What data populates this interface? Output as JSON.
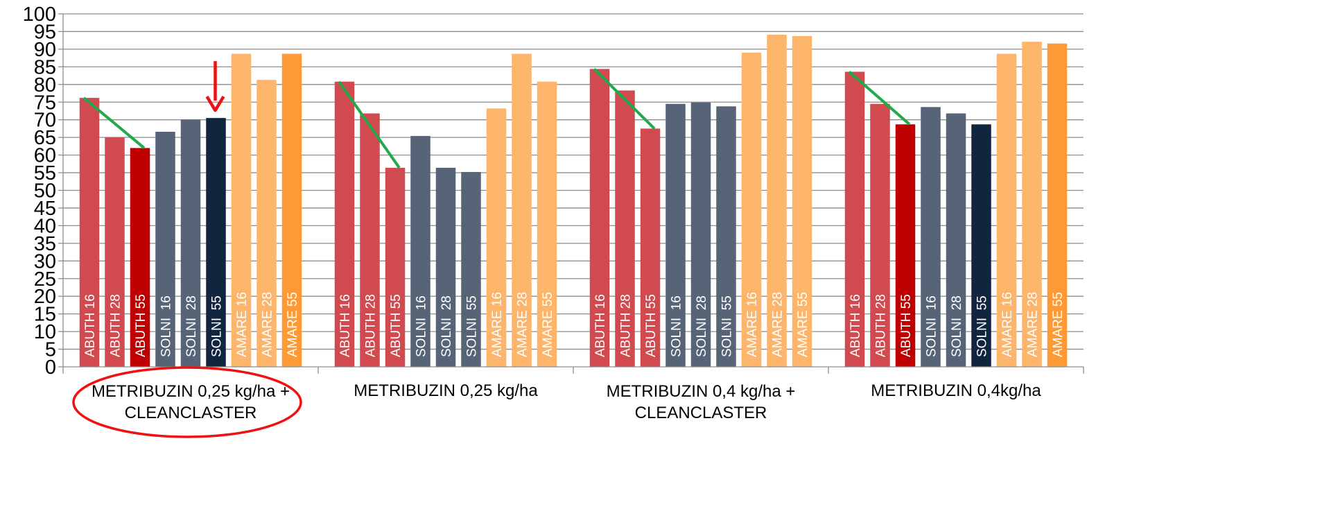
{
  "chart_data": {
    "type": "bar",
    "title": "",
    "xlabel": "",
    "ylabel": "",
    "ylim": [
      0,
      100
    ],
    "yticks": [
      0,
      5,
      10,
      15,
      20,
      25,
      30,
      35,
      40,
      45,
      50,
      55,
      60,
      65,
      70,
      75,
      80,
      85,
      90,
      95,
      100
    ],
    "grid": true,
    "legend": "none",
    "colors": {
      "abuth": "#D04A4F",
      "abuth_highlight": "#C00000",
      "solni": "#576477",
      "solni_highlight": "#12253F",
      "amare": "#FDB56C",
      "amare_highlight": "#FD9A35",
      "trend": "#22AA4A",
      "arrow": "#EE1111",
      "circle": "#EE1111"
    },
    "groups": [
      {
        "label_lines": [
          "METRIBUZIN 0,25 kg/ha +",
          "CLEANCLASTER"
        ],
        "circled": true,
        "bars": [
          {
            "label": "ABUTH 16",
            "value": 76.2,
            "color": "abuth"
          },
          {
            "label": "ABUTH 28",
            "value": 65.0,
            "color": "abuth"
          },
          {
            "label": "ABUTH 55",
            "value": 62.0,
            "color": "abuth_highlight"
          },
          {
            "label": "SOLNI  16",
            "value": 66.6,
            "color": "solni"
          },
          {
            "label": "SOLNI  28",
            "value": 70.0,
            "color": "solni"
          },
          {
            "label": "SOLNI  55",
            "value": 70.5,
            "color": "solni_highlight"
          },
          {
            "label": "AMARE 16",
            "value": 88.7,
            "color": "amare"
          },
          {
            "label": "AMARE 28",
            "value": 81.3,
            "color": "amare"
          },
          {
            "label": "AMARE 55",
            "value": 88.7,
            "color": "amare_highlight"
          }
        ],
        "trend": {
          "from": 0,
          "to": 2
        },
        "arrow_bar": 5
      },
      {
        "label_lines": [
          "METRIBUZIN 0,25 kg/ha"
        ],
        "circled": false,
        "bars": [
          {
            "label": "ABUTH 16",
            "value": 80.8,
            "color": "abuth"
          },
          {
            "label": "ABUTH 28",
            "value": 71.8,
            "color": "abuth"
          },
          {
            "label": "ABUTH 55",
            "value": 56.4,
            "color": "abuth"
          },
          {
            "label": "SOLNI  16",
            "value": 65.4,
            "color": "solni"
          },
          {
            "label": "SOLNI  28",
            "value": 56.4,
            "color": "solni"
          },
          {
            "label": "SOLNI  55",
            "value": 55.2,
            "color": "solni"
          },
          {
            "label": "AMARE 16",
            "value": 73.2,
            "color": "amare"
          },
          {
            "label": "AMARE 28",
            "value": 88.7,
            "color": "amare"
          },
          {
            "label": "AMARE 55",
            "value": 80.8,
            "color": "amare"
          }
        ],
        "trend": {
          "from": 0,
          "to": 2
        }
      },
      {
        "label_lines": [
          "METRIBUZIN 0,4 kg/ha +",
          "CLEANCLASTER"
        ],
        "circled": false,
        "bars": [
          {
            "label": "ABUTH 16",
            "value": 84.4,
            "color": "abuth"
          },
          {
            "label": "ABUTH 28",
            "value": 78.3,
            "color": "abuth"
          },
          {
            "label": "ABUTH 55",
            "value": 67.5,
            "color": "abuth"
          },
          {
            "label": "SOLNI  16",
            "value": 74.5,
            "color": "solni"
          },
          {
            "label": "SOLNI  28",
            "value": 74.9,
            "color": "solni"
          },
          {
            "label": "SOLNI  55",
            "value": 73.8,
            "color": "solni"
          },
          {
            "label": "AMARE 16",
            "value": 89.0,
            "color": "amare"
          },
          {
            "label": "AMARE 28",
            "value": 94.1,
            "color": "amare"
          },
          {
            "label": "AMARE 55",
            "value": 93.7,
            "color": "amare"
          }
        ],
        "trend": {
          "from": 0,
          "to": 2
        }
      },
      {
        "label_lines": [
          "METRIBUZIN 0,4kg/ha"
        ],
        "circled": false,
        "bars": [
          {
            "label": "ABUTH 16",
            "value": 83.6,
            "color": "abuth"
          },
          {
            "label": "ABUTH 28",
            "value": 74.5,
            "color": "abuth"
          },
          {
            "label": "ABUTH 55",
            "value": 68.7,
            "color": "abuth_highlight"
          },
          {
            "label": "SOLNI  16",
            "value": 73.6,
            "color": "solni"
          },
          {
            "label": "SOLNI  28",
            "value": 71.8,
            "color": "solni"
          },
          {
            "label": "SOLNI  55",
            "value": 68.7,
            "color": "solni_highlight"
          },
          {
            "label": "AMARE 16",
            "value": 88.7,
            "color": "amare"
          },
          {
            "label": "AMARE 28",
            "value": 92.1,
            "color": "amare"
          },
          {
            "label": "AMARE 55",
            "value": 91.6,
            "color": "amare_highlight"
          }
        ],
        "trend": {
          "from": 0,
          "to": 2
        }
      }
    ]
  }
}
